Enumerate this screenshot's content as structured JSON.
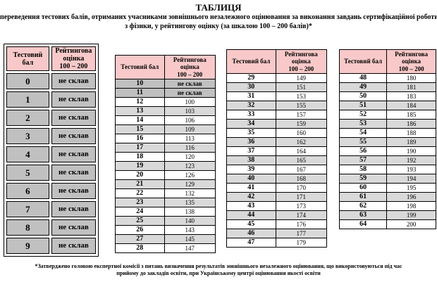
{
  "title": {
    "heading": "ТАБЛИЦЯ",
    "subtitle_line1": "переведення тестових балів, отриманих учасниками зовнішнього незалежного оцінювання за виконання завдань сертифікаційної роботи",
    "subtitle_line2": "з фізики, у рейтингову оцінку (за шкалою 100 – 200 балів)*"
  },
  "columns": {
    "test_score": "Тестовий бал",
    "rating": "Рейтингова\nоцінка\n100 – 200"
  },
  "fail_label": "не склав",
  "colors": {
    "header_pink": "#f9c9c9",
    "fail_gray": "#c0c0c0",
    "shaded_gray": "#d9d9d9",
    "border_black": "#000000"
  },
  "tables": [
    {
      "rows": [
        [
          "0",
          "не склав"
        ],
        [
          "1",
          "не склав"
        ],
        [
          "2",
          "не склав"
        ],
        [
          "3",
          "не склав"
        ],
        [
          "4",
          "не склав"
        ],
        [
          "5",
          "не склав"
        ],
        [
          "6",
          "не склав"
        ],
        [
          "7",
          "не склав"
        ],
        [
          "8",
          "не склав"
        ],
        [
          "9",
          "не склав"
        ]
      ]
    },
    {
      "rows": [
        [
          "10",
          "не склав"
        ],
        [
          "11",
          "не склав"
        ],
        [
          "12",
          "100"
        ],
        [
          "13",
          "103"
        ],
        [
          "14",
          "106"
        ],
        [
          "15",
          "109"
        ],
        [
          "16",
          "113"
        ],
        [
          "17",
          "116"
        ],
        [
          "18",
          "120"
        ],
        [
          "19",
          "123"
        ],
        [
          "20",
          "126"
        ],
        [
          "21",
          "129"
        ],
        [
          "22",
          "132"
        ],
        [
          "23",
          "135"
        ],
        [
          "24",
          "138"
        ],
        [
          "25",
          "140"
        ],
        [
          "26",
          "143"
        ],
        [
          "27",
          "145"
        ],
        [
          "28",
          "147"
        ]
      ]
    },
    {
      "rows": [
        [
          "29",
          "149"
        ],
        [
          "30",
          "151"
        ],
        [
          "31",
          "153"
        ],
        [
          "32",
          "155"
        ],
        [
          "33",
          "157"
        ],
        [
          "34",
          "159"
        ],
        [
          "35",
          "160"
        ],
        [
          "36",
          "162"
        ],
        [
          "37",
          "164"
        ],
        [
          "38",
          "165"
        ],
        [
          "39",
          "167"
        ],
        [
          "40",
          "168"
        ],
        [
          "41",
          "170"
        ],
        [
          "42",
          "171"
        ],
        [
          "43",
          "173"
        ],
        [
          "44",
          "174"
        ],
        [
          "45",
          "176"
        ],
        [
          "46",
          "177"
        ],
        [
          "47",
          "179"
        ]
      ]
    },
    {
      "rows": [
        [
          "48",
          "180"
        ],
        [
          "49",
          "181"
        ],
        [
          "50",
          "183"
        ],
        [
          "51",
          "184"
        ],
        [
          "52",
          "185"
        ],
        [
          "53",
          "186"
        ],
        [
          "54",
          "188"
        ],
        [
          "55",
          "189"
        ],
        [
          "56",
          "190"
        ],
        [
          "57",
          "192"
        ],
        [
          "58",
          "193"
        ],
        [
          "59",
          "194"
        ],
        [
          "60",
          "195"
        ],
        [
          "61",
          "196"
        ],
        [
          "62",
          "198"
        ],
        [
          "63",
          "199"
        ],
        [
          "64",
          "200"
        ]
      ]
    }
  ],
  "footnote": "*Затверджено головою експертної комісії з питань визначення результатів зовнішнього незалежного оцінювання, що використовуються під час прийому до закладів освіти, при Українському центрі оцінювання якості освіти"
}
